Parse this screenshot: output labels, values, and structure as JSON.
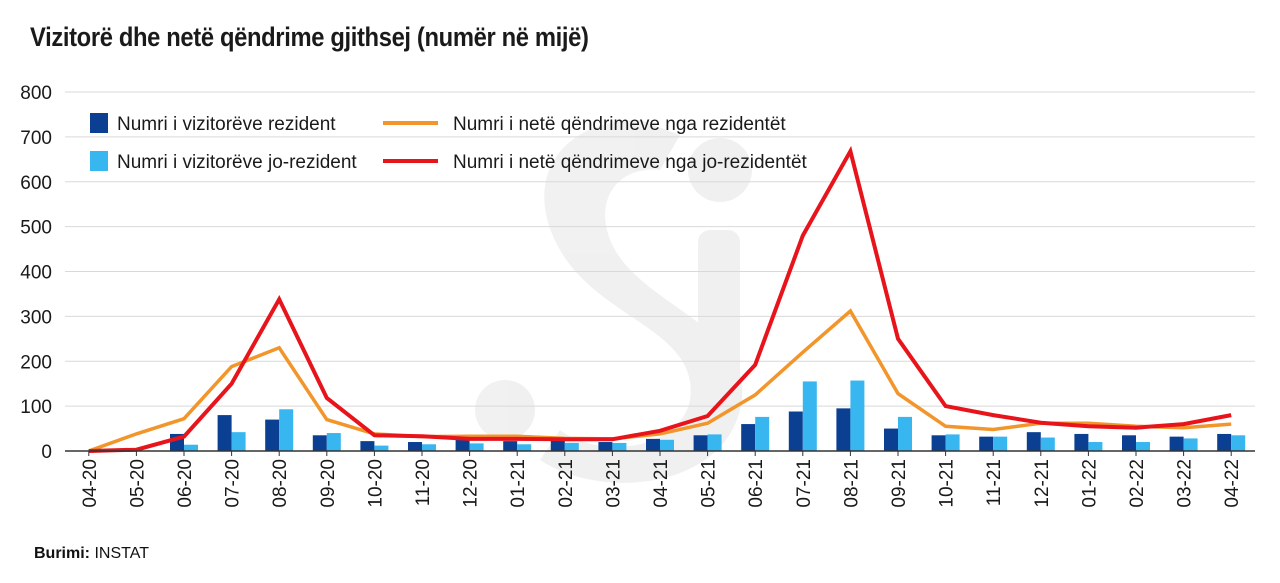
{
  "title": "Vizitorë dhe netë qëndrime gjithsej (numër në mijë)",
  "source": {
    "label": "Burimi:",
    "value": "INSTAT"
  },
  "colors": {
    "resident_visitors": "#0b3f91",
    "nonresident_visitors": "#38b6f0",
    "resident_nights": "#f2952b",
    "nonresident_nights": "#e8141b",
    "grid": "#d9d9d9",
    "axis": "#333333"
  },
  "chart_data": {
    "type": "bar",
    "title": "Vizitorë dhe netë qëndrime gjithsej (numër në mijë)",
    "xlabel": "",
    "ylabel": "",
    "ylim": [
      0,
      800
    ],
    "yticks": [
      0,
      100,
      200,
      300,
      400,
      500,
      600,
      700,
      800
    ],
    "grid": true,
    "legend_position": "top-left",
    "categories": [
      "04-20",
      "05-20",
      "06-20",
      "07-20",
      "08-20",
      "09-20",
      "10-20",
      "11-20",
      "12-20",
      "01-21",
      "02-21",
      "03-21",
      "04-21",
      "05-21",
      "06-21",
      "07-21",
      "08-21",
      "09-21",
      "10-21",
      "11-21",
      "12-21",
      "01-22",
      "02-22",
      "03-22",
      "04-22"
    ],
    "series": [
      {
        "name": "Numri i vizitorëve rezident",
        "type": "bar",
        "color_key": "resident_visitors",
        "values": [
          0,
          0,
          38,
          80,
          70,
          35,
          22,
          20,
          25,
          22,
          23,
          20,
          27,
          35,
          60,
          88,
          95,
          50,
          35,
          32,
          42,
          38,
          35,
          32,
          38
        ]
      },
      {
        "name": "Numri i vizitorëve jo-rezident",
        "type": "bar",
        "color_key": "nonresident_visitors",
        "values": [
          0,
          0,
          14,
          42,
          93,
          40,
          12,
          15,
          17,
          15,
          18,
          18,
          25,
          37,
          76,
          155,
          157,
          76,
          37,
          32,
          30,
          20,
          20,
          28,
          35
        ]
      },
      {
        "name": "Numri i netë qëndrimeve nga rezidentët",
        "type": "line",
        "color_key": "resident_nights",
        "values": [
          0,
          38,
          72,
          188,
          230,
          70,
          38,
          32,
          33,
          33,
          28,
          27,
          38,
          62,
          125,
          220,
          312,
          128,
          55,
          48,
          62,
          62,
          55,
          52,
          60
        ]
      },
      {
        "name": "Numri i netë qëndrimeve nga jo-rezidentët",
        "type": "line",
        "color_key": "nonresident_nights",
        "values": [
          0,
          3,
          32,
          150,
          338,
          118,
          35,
          33,
          27,
          27,
          26,
          26,
          45,
          78,
          192,
          480,
          668,
          250,
          100,
          80,
          63,
          55,
          52,
          60,
          80
        ]
      }
    ]
  }
}
